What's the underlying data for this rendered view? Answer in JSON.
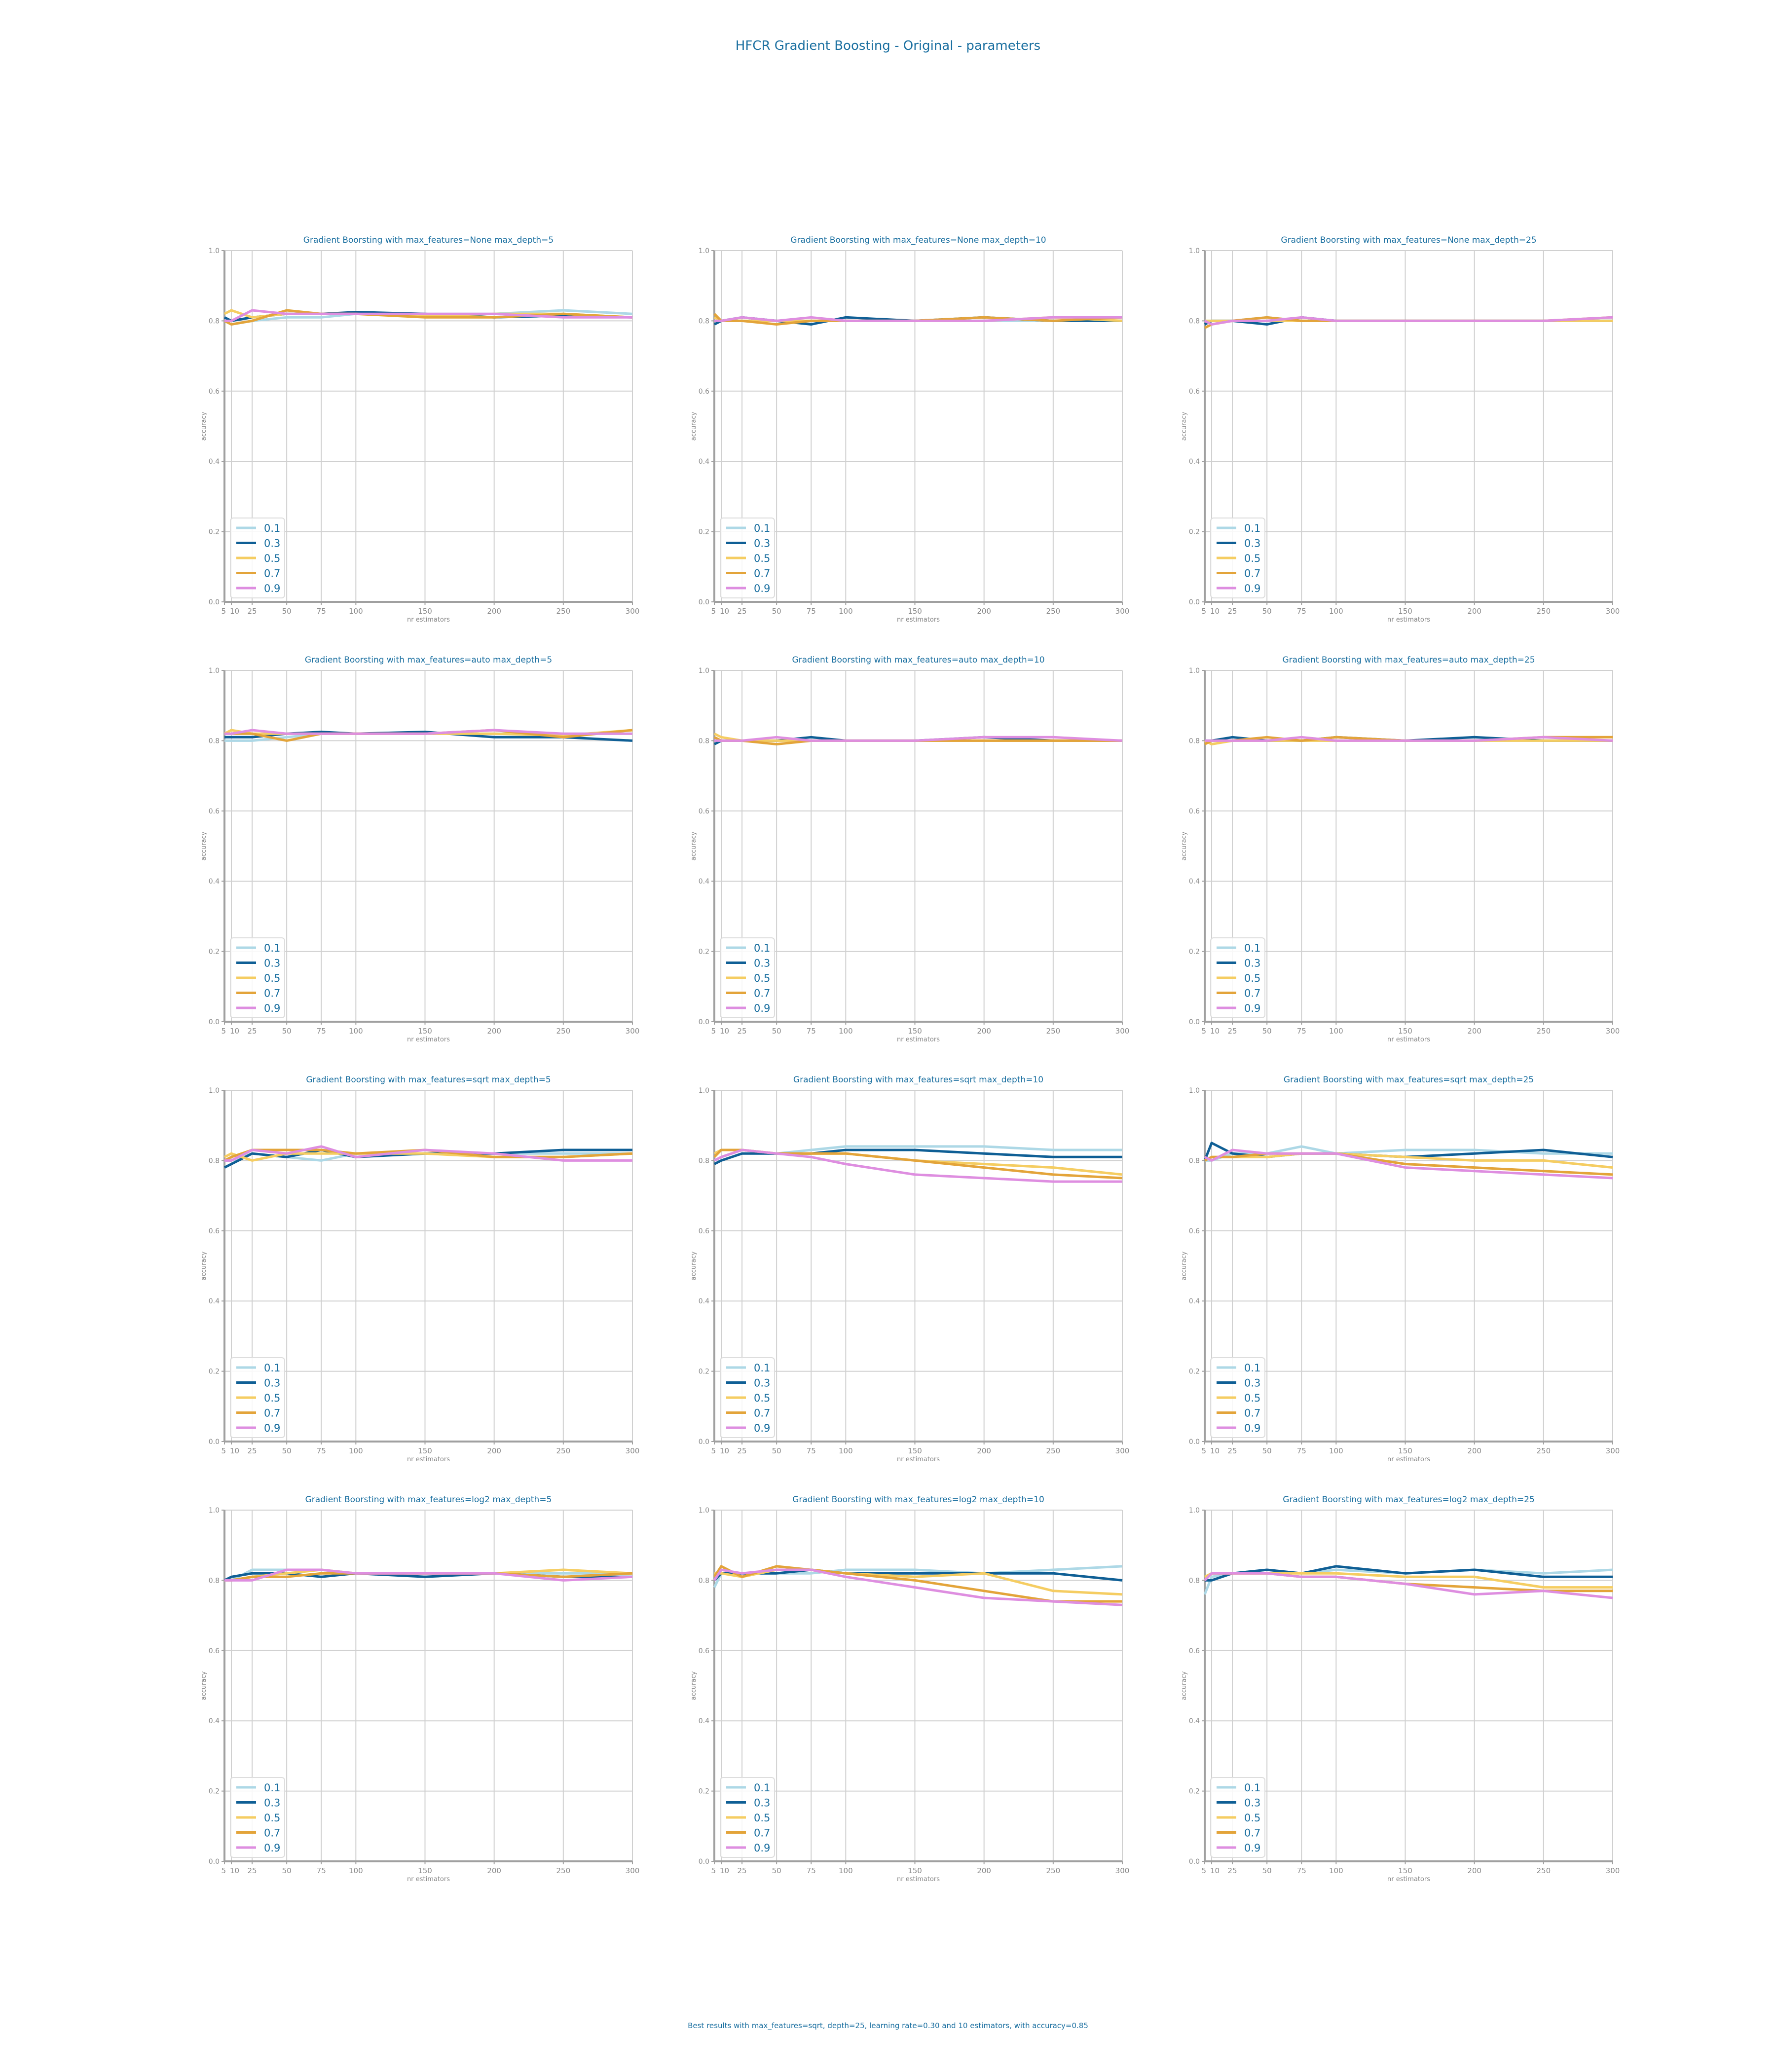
{
  "figure": {
    "title": "HFCR Gradient Boosting - Original - parameters",
    "footer": "Best results with max_features=sqrt, depth=25, learning rate=0.30 and 10 estimators, with accuracy=0.85"
  },
  "colors": {
    "text": "#1a6fa0",
    "axis": "#a0a0a0",
    "grid": "#d0d0d0",
    "tick": "#888888"
  },
  "chart_data": {
    "type": "line",
    "rows": 4,
    "cols": 3,
    "x": [
      5,
      10,
      25,
      50,
      75,
      100,
      150,
      200,
      250,
      300
    ],
    "xticks": [
      5,
      10,
      25,
      50,
      75,
      100,
      150,
      200,
      250,
      300
    ],
    "xticklabels": [
      "5",
      "10",
      "25",
      "50",
      "75",
      "100",
      "150",
      "200",
      "250",
      "300"
    ],
    "xlim": [
      5,
      300
    ],
    "ylim": [
      0.0,
      1.0
    ],
    "yticks": [
      0.0,
      0.2,
      0.4,
      0.6,
      0.8,
      1.0
    ],
    "yticklabels": [
      "0.0",
      "0.2",
      "0.4",
      "0.6",
      "0.8",
      "1.0"
    ],
    "xlabel": "nr estimators",
    "ylabel": "accuracy",
    "grid": true,
    "legend_position": "lower-left",
    "series_colors": [
      "#add8e6",
      "#0f5f95",
      "#f5cd62",
      "#e3a43a",
      "#de8ee0"
    ],
    "series_names": [
      "0.1",
      "0.3",
      "0.5",
      "0.7",
      "0.9"
    ],
    "subplots": [
      {
        "title": "Gradient Boorsting with max_features=None max_depth=5",
        "series": [
          {
            "name": "0.1",
            "values": [
              0.8,
              0.79,
              0.8,
              0.81,
              0.81,
              0.82,
              0.82,
              0.82,
              0.83,
              0.82
            ]
          },
          {
            "name": "0.3",
            "values": [
              0.81,
              0.8,
              0.81,
              0.82,
              0.82,
              0.825,
              0.82,
              0.81,
              0.815,
              0.81
            ]
          },
          {
            "name": "0.5",
            "values": [
              0.82,
              0.83,
              0.81,
              0.82,
              0.82,
              0.82,
              0.815,
              0.82,
              0.82,
              0.81
            ]
          },
          {
            "name": "0.7",
            "values": [
              0.8,
              0.79,
              0.8,
              0.83,
              0.82,
              0.82,
              0.81,
              0.81,
              0.82,
              0.81
            ]
          },
          {
            "name": "0.9",
            "values": [
              0.8,
              0.8,
              0.83,
              0.82,
              0.82,
              0.82,
              0.82,
              0.82,
              0.81,
              0.81
            ]
          }
        ]
      },
      {
        "title": "Gradient Boorsting with max_features=None max_depth=10",
        "series": [
          {
            "name": "0.1",
            "values": [
              0.8,
              0.8,
              0.8,
              0.8,
              0.8,
              0.8,
              0.8,
              0.8,
              0.8,
              0.8
            ]
          },
          {
            "name": "0.3",
            "values": [
              0.79,
              0.8,
              0.81,
              0.8,
              0.79,
              0.81,
              0.8,
              0.81,
              0.8,
              0.8
            ]
          },
          {
            "name": "0.5",
            "values": [
              0.81,
              0.8,
              0.8,
              0.8,
              0.8,
              0.8,
              0.8,
              0.8,
              0.81,
              0.8
            ]
          },
          {
            "name": "0.7",
            "values": [
              0.82,
              0.8,
              0.8,
              0.79,
              0.8,
              0.8,
              0.8,
              0.81,
              0.8,
              0.81
            ]
          },
          {
            "name": "0.9",
            "values": [
              0.8,
              0.8,
              0.81,
              0.8,
              0.81,
              0.8,
              0.8,
              0.8,
              0.81,
              0.81
            ]
          }
        ]
      },
      {
        "title": "Gradient Boorsting with max_features=None max_depth=25",
        "series": [
          {
            "name": "0.1",
            "values": [
              0.8,
              0.8,
              0.8,
              0.81,
              0.8,
              0.8,
              0.8,
              0.8,
              0.8,
              0.8
            ]
          },
          {
            "name": "0.3",
            "values": [
              0.79,
              0.8,
              0.8,
              0.79,
              0.81,
              0.8,
              0.8,
              0.8,
              0.8,
              0.8
            ]
          },
          {
            "name": "0.5",
            "values": [
              0.8,
              0.8,
              0.8,
              0.8,
              0.8,
              0.8,
              0.8,
              0.8,
              0.8,
              0.8
            ]
          },
          {
            "name": "0.7",
            "values": [
              0.78,
              0.79,
              0.8,
              0.81,
              0.8,
              0.8,
              0.8,
              0.8,
              0.8,
              0.81
            ]
          },
          {
            "name": "0.9",
            "values": [
              0.8,
              0.79,
              0.8,
              0.8,
              0.81,
              0.8,
              0.8,
              0.8,
              0.8,
              0.81
            ]
          }
        ]
      },
      {
        "title": "Gradient Boorsting with max_features=auto max_depth=5",
        "series": [
          {
            "name": "0.1",
            "values": [
              0.8,
              0.8,
              0.8,
              0.81,
              0.82,
              0.82,
              0.82,
              0.82,
              0.82,
              0.82
            ]
          },
          {
            "name": "0.3",
            "values": [
              0.81,
              0.81,
              0.81,
              0.82,
              0.825,
              0.82,
              0.825,
              0.81,
              0.81,
              0.8
            ]
          },
          {
            "name": "0.5",
            "values": [
              0.82,
              0.83,
              0.82,
              0.82,
              0.82,
              0.82,
              0.82,
              0.82,
              0.815,
              0.83
            ]
          },
          {
            "name": "0.7",
            "values": [
              0.82,
              0.82,
              0.82,
              0.8,
              0.82,
              0.82,
              0.82,
              0.83,
              0.81,
              0.83
            ]
          },
          {
            "name": "0.9",
            "values": [
              0.82,
              0.82,
              0.83,
              0.82,
              0.82,
              0.82,
              0.82,
              0.83,
              0.82,
              0.82
            ]
          }
        ]
      },
      {
        "title": "Gradient Boorsting with max_features=auto max_depth=10",
        "series": [
          {
            "name": "0.1",
            "values": [
              0.8,
              0.8,
              0.8,
              0.8,
              0.8,
              0.8,
              0.8,
              0.8,
              0.8,
              0.8
            ]
          },
          {
            "name": "0.3",
            "values": [
              0.79,
              0.8,
              0.8,
              0.8,
              0.81,
              0.8,
              0.8,
              0.81,
              0.8,
              0.8
            ]
          },
          {
            "name": "0.5",
            "values": [
              0.82,
              0.81,
              0.8,
              0.8,
              0.8,
              0.8,
              0.8,
              0.8,
              0.8,
              0.8
            ]
          },
          {
            "name": "0.7",
            "values": [
              0.81,
              0.8,
              0.8,
              0.79,
              0.8,
              0.8,
              0.8,
              0.8,
              0.8,
              0.8
            ]
          },
          {
            "name": "0.9",
            "values": [
              0.8,
              0.8,
              0.8,
              0.81,
              0.8,
              0.8,
              0.8,
              0.81,
              0.81,
              0.8
            ]
          }
        ]
      },
      {
        "title": "Gradient Boorsting with max_features=auto max_depth=25",
        "series": [
          {
            "name": "0.1",
            "values": [
              0.8,
              0.8,
              0.8,
              0.8,
              0.8,
              0.8,
              0.8,
              0.8,
              0.8,
              0.8
            ]
          },
          {
            "name": "0.3",
            "values": [
              0.8,
              0.8,
              0.81,
              0.8,
              0.8,
              0.81,
              0.8,
              0.81,
              0.8,
              0.8
            ]
          },
          {
            "name": "0.5",
            "values": [
              0.8,
              0.79,
              0.8,
              0.8,
              0.8,
              0.8,
              0.8,
              0.8,
              0.8,
              0.8
            ]
          },
          {
            "name": "0.7",
            "values": [
              0.79,
              0.8,
              0.8,
              0.81,
              0.8,
              0.81,
              0.8,
              0.8,
              0.81,
              0.81
            ]
          },
          {
            "name": "0.9",
            "values": [
              0.8,
              0.8,
              0.8,
              0.8,
              0.81,
              0.8,
              0.8,
              0.8,
              0.81,
              0.8
            ]
          }
        ]
      },
      {
        "title": "Gradient Boorsting with max_features=sqrt max_depth=5",
        "series": [
          {
            "name": "0.1",
            "values": [
              0.8,
              0.8,
              0.82,
              0.81,
              0.8,
              0.82,
              0.82,
              0.82,
              0.82,
              0.82
            ]
          },
          {
            "name": "0.3",
            "values": [
              0.78,
              0.79,
              0.82,
              0.81,
              0.83,
              0.81,
              0.82,
              0.82,
              0.83,
              0.83
            ]
          },
          {
            "name": "0.5",
            "values": [
              0.81,
              0.82,
              0.8,
              0.82,
              0.82,
              0.82,
              0.82,
              0.81,
              0.81,
              0.82
            ]
          },
          {
            "name": "0.7",
            "values": [
              0.8,
              0.81,
              0.83,
              0.83,
              0.83,
              0.82,
              0.83,
              0.81,
              0.81,
              0.82
            ]
          },
          {
            "name": "0.9",
            "values": [
              0.8,
              0.8,
              0.83,
              0.82,
              0.84,
              0.81,
              0.83,
              0.82,
              0.8,
              0.8
            ]
          }
        ]
      },
      {
        "title": "Gradient Boorsting with max_features=sqrt max_depth=10",
        "series": [
          {
            "name": "0.1",
            "values": [
              0.8,
              0.81,
              0.83,
              0.82,
              0.83,
              0.84,
              0.84,
              0.84,
              0.83,
              0.83
            ]
          },
          {
            "name": "0.3",
            "values": [
              0.79,
              0.8,
              0.82,
              0.82,
              0.82,
              0.83,
              0.83,
              0.82,
              0.81,
              0.81
            ]
          },
          {
            "name": "0.5",
            "values": [
              0.82,
              0.83,
              0.83,
              0.82,
              0.82,
              0.82,
              0.8,
              0.79,
              0.78,
              0.76
            ]
          },
          {
            "name": "0.7",
            "values": [
              0.81,
              0.83,
              0.83,
              0.82,
              0.82,
              0.82,
              0.8,
              0.78,
              0.76,
              0.75
            ]
          },
          {
            "name": "0.9",
            "values": [
              0.8,
              0.81,
              0.83,
              0.82,
              0.81,
              0.79,
              0.76,
              0.75,
              0.74,
              0.74
            ]
          }
        ]
      },
      {
        "title": "Gradient Boorsting with max_features=sqrt max_depth=25",
        "series": [
          {
            "name": "0.1",
            "values": [
              0.8,
              0.8,
              0.82,
              0.82,
              0.84,
              0.82,
              0.83,
              0.83,
              0.82,
              0.82
            ]
          },
          {
            "name": "0.3",
            "values": [
              0.8,
              0.85,
              0.82,
              0.81,
              0.82,
              0.82,
              0.81,
              0.82,
              0.83,
              0.81
            ]
          },
          {
            "name": "0.5",
            "values": [
              0.8,
              0.81,
              0.81,
              0.81,
              0.82,
              0.82,
              0.81,
              0.8,
              0.8,
              0.78
            ]
          },
          {
            "name": "0.7",
            "values": [
              0.8,
              0.81,
              0.81,
              0.82,
              0.82,
              0.82,
              0.79,
              0.78,
              0.77,
              0.76
            ]
          },
          {
            "name": "0.9",
            "values": [
              0.81,
              0.8,
              0.83,
              0.82,
              0.82,
              0.82,
              0.78,
              0.77,
              0.76,
              0.75
            ]
          }
        ]
      },
      {
        "title": "Gradient Boorsting with max_features=log2 max_depth=5",
        "series": [
          {
            "name": "0.1",
            "values": [
              0.8,
              0.8,
              0.83,
              0.83,
              0.83,
              0.82,
              0.82,
              0.82,
              0.82,
              0.82
            ]
          },
          {
            "name": "0.3",
            "values": [
              0.8,
              0.81,
              0.82,
              0.82,
              0.81,
              0.82,
              0.81,
              0.82,
              0.81,
              0.81
            ]
          },
          {
            "name": "0.5",
            "values": [
              0.8,
              0.8,
              0.81,
              0.82,
              0.83,
              0.82,
              0.82,
              0.82,
              0.83,
              0.82
            ]
          },
          {
            "name": "0.7",
            "values": [
              0.8,
              0.8,
              0.81,
              0.81,
              0.82,
              0.82,
              0.82,
              0.82,
              0.81,
              0.82
            ]
          },
          {
            "name": "0.9",
            "values": [
              0.8,
              0.8,
              0.8,
              0.83,
              0.83,
              0.82,
              0.82,
              0.82,
              0.8,
              0.81
            ]
          }
        ]
      },
      {
        "title": "Gradient Boorsting with max_features=log2 max_depth=10",
        "series": [
          {
            "name": "0.1",
            "values": [
              0.78,
              0.82,
              0.82,
              0.82,
              0.82,
              0.83,
              0.83,
              0.82,
              0.83,
              0.84
            ]
          },
          {
            "name": "0.3",
            "values": [
              0.8,
              0.82,
              0.82,
              0.82,
              0.83,
              0.82,
              0.82,
              0.82,
              0.82,
              0.8
            ]
          },
          {
            "name": "0.5",
            "values": [
              0.82,
              0.82,
              0.81,
              0.83,
              0.83,
              0.82,
              0.81,
              0.82,
              0.77,
              0.76
            ]
          },
          {
            "name": "0.7",
            "values": [
              0.81,
              0.84,
              0.81,
              0.84,
              0.83,
              0.82,
              0.8,
              0.77,
              0.74,
              0.74
            ]
          },
          {
            "name": "0.9",
            "values": [
              0.8,
              0.83,
              0.82,
              0.83,
              0.83,
              0.81,
              0.78,
              0.75,
              0.74,
              0.73
            ]
          }
        ]
      },
      {
        "title": "Gradient Boorsting with max_features=log2 max_depth=25",
        "series": [
          {
            "name": "0.1",
            "values": [
              0.76,
              0.81,
              0.82,
              0.83,
              0.82,
              0.83,
              0.82,
              0.83,
              0.82,
              0.83
            ]
          },
          {
            "name": "0.3",
            "values": [
              0.8,
              0.8,
              0.82,
              0.83,
              0.82,
              0.84,
              0.82,
              0.83,
              0.81,
              0.81
            ]
          },
          {
            "name": "0.5",
            "values": [
              0.81,
              0.82,
              0.82,
              0.82,
              0.82,
              0.82,
              0.81,
              0.81,
              0.78,
              0.78
            ]
          },
          {
            "name": "0.7",
            "values": [
              0.8,
              0.82,
              0.82,
              0.82,
              0.81,
              0.81,
              0.79,
              0.78,
              0.77,
              0.77
            ]
          },
          {
            "name": "0.9",
            "values": [
              0.8,
              0.82,
              0.82,
              0.82,
              0.81,
              0.81,
              0.79,
              0.76,
              0.77,
              0.75
            ]
          }
        ]
      }
    ]
  }
}
